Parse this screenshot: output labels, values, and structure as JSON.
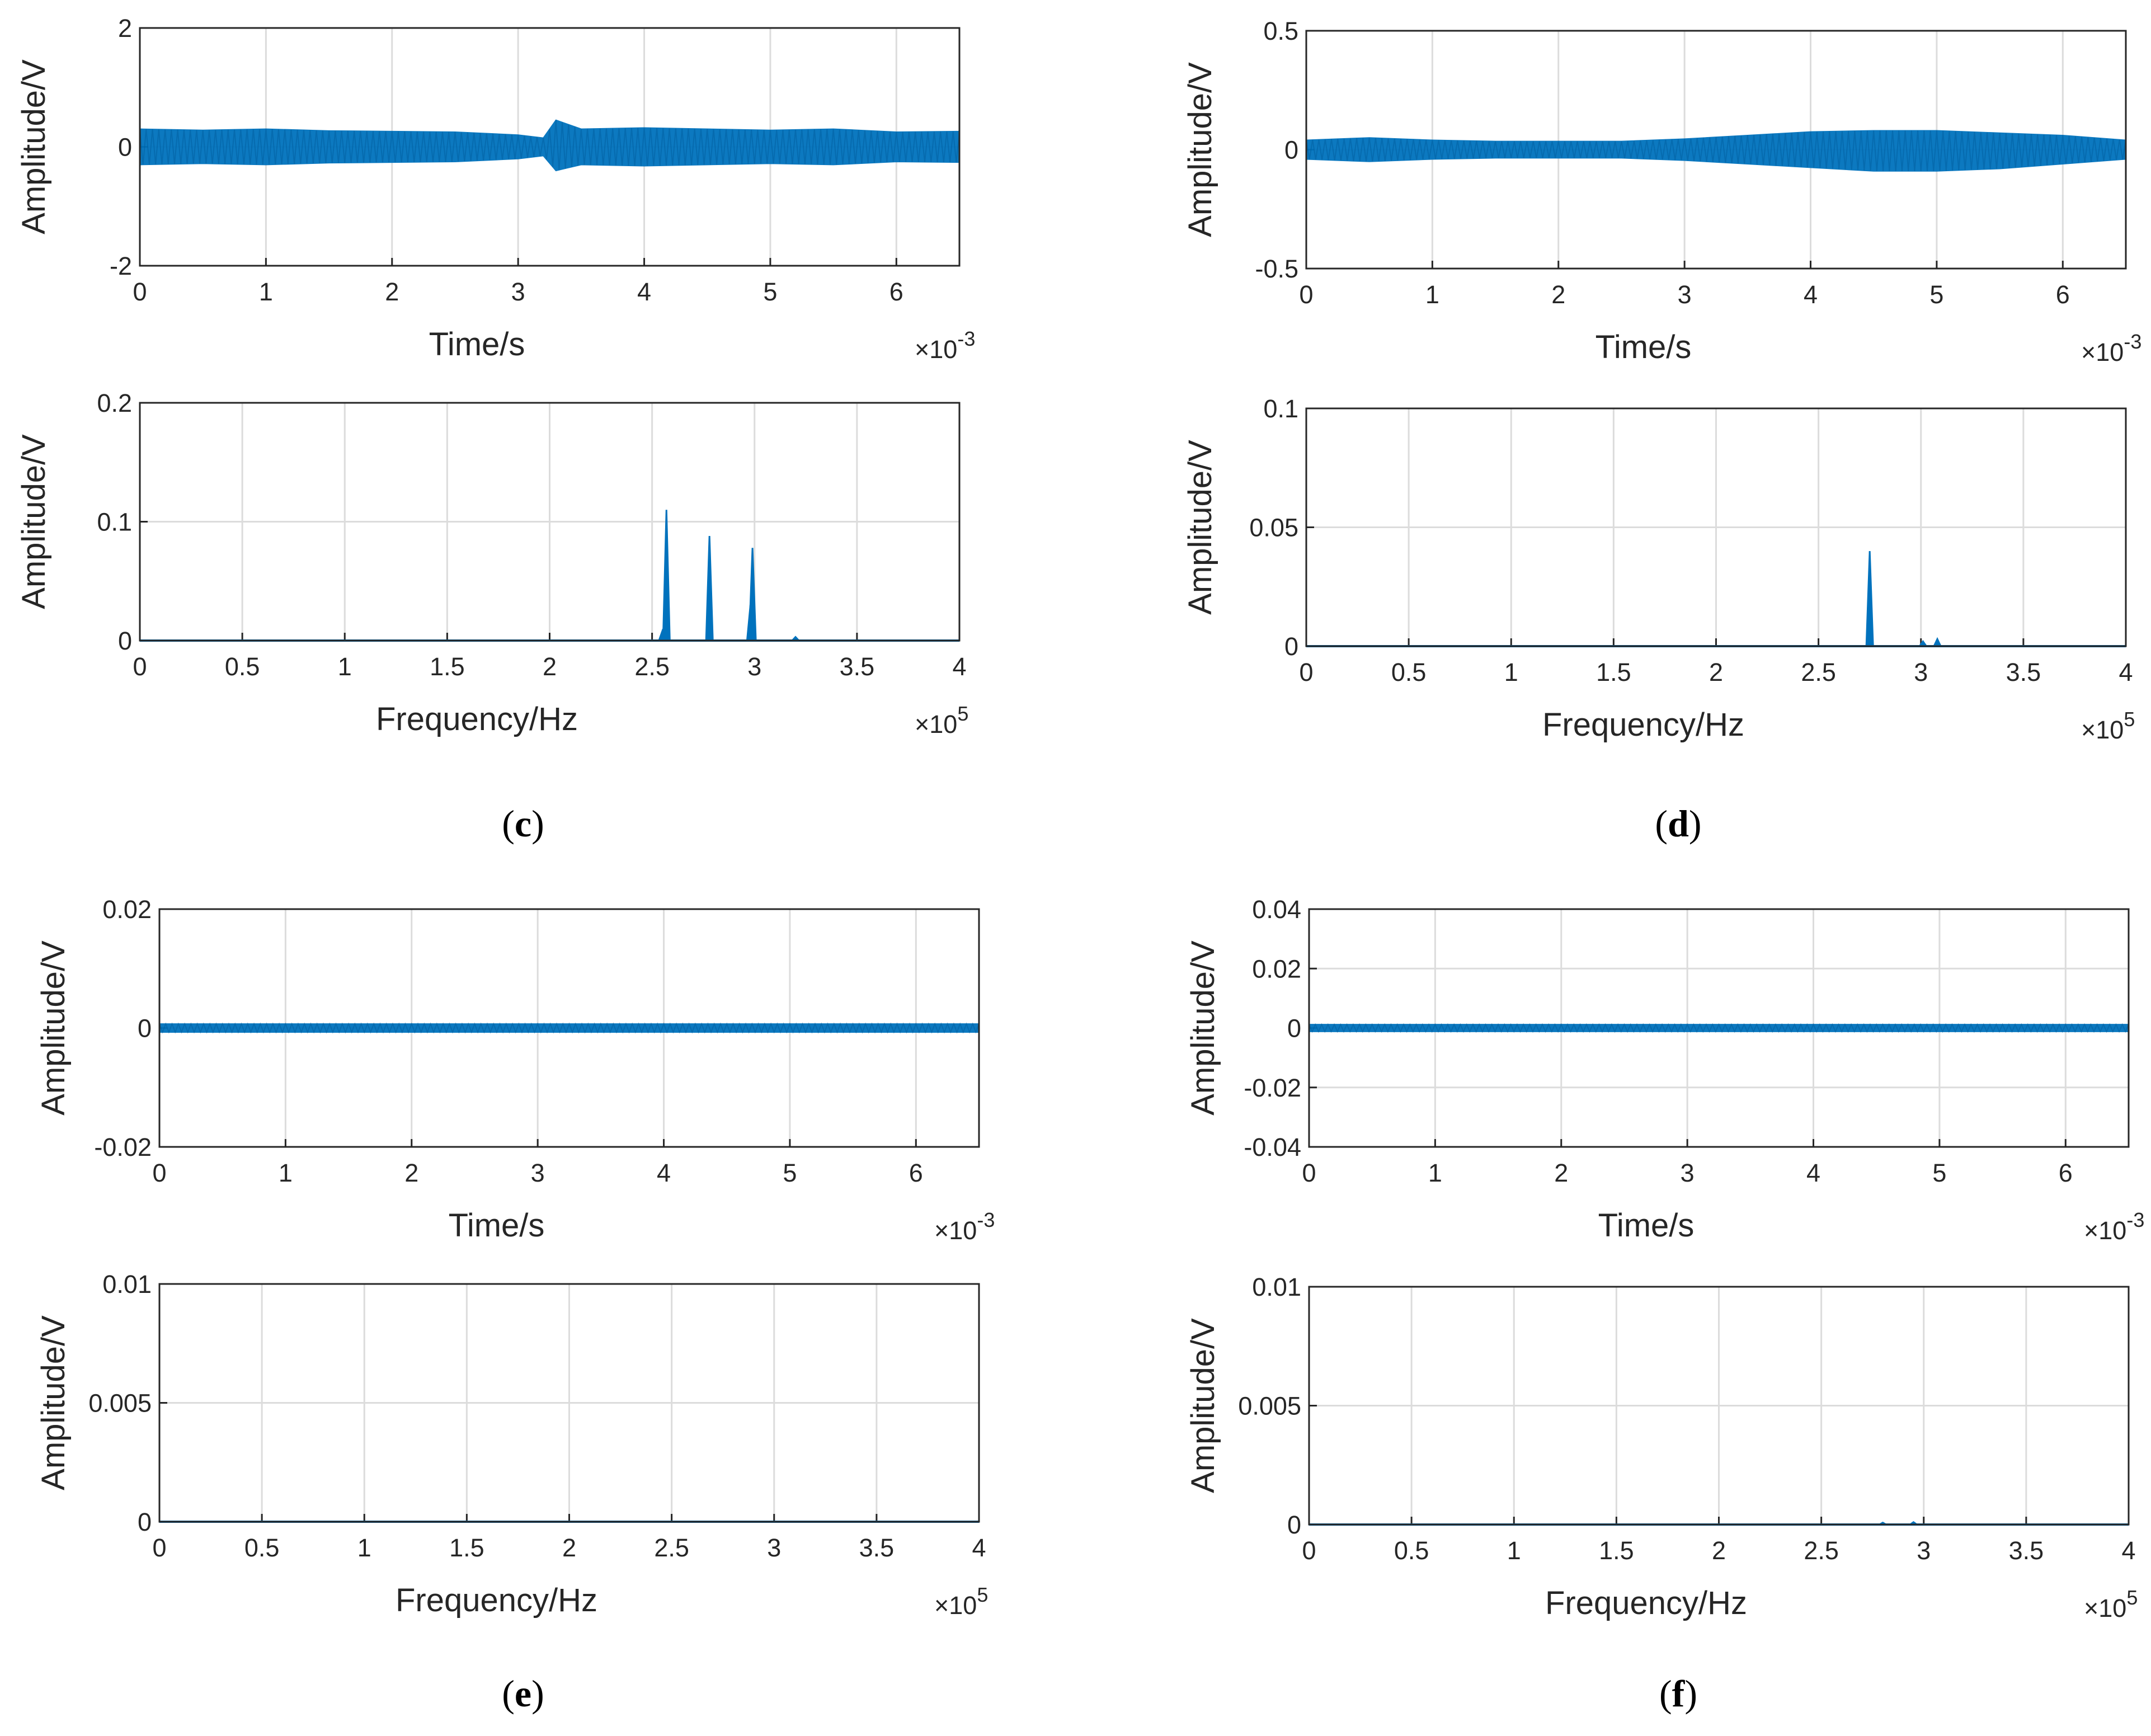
{
  "chart_data": [
    {
      "id": "c-time",
      "type": "line",
      "xlabel": "Time/s",
      "ylabel": "Amplitude/V",
      "xlim": [
        0,
        0.0065
      ],
      "ylim": [
        -2,
        2
      ],
      "xticks": [
        "0",
        "1",
        "2",
        "3",
        "4",
        "5",
        "6"
      ],
      "yticks": [
        "-2",
        "0",
        "2"
      ],
      "x_multiplier": "×10",
      "x_exponent": "-3",
      "signal": {
        "kind": "envelope",
        "x": [
          0,
          0.0005,
          0.001,
          0.0015,
          0.002,
          0.0025,
          0.003,
          0.0032,
          0.0033,
          0.0035,
          0.004,
          0.0045,
          0.005,
          0.0055,
          0.006,
          0.0065
        ],
        "upper": [
          0.3,
          0.28,
          0.3,
          0.27,
          0.26,
          0.25,
          0.2,
          0.15,
          0.45,
          0.3,
          0.32,
          0.3,
          0.28,
          0.3,
          0.25,
          0.26
        ],
        "lower": [
          -0.3,
          -0.28,
          -0.3,
          -0.27,
          -0.26,
          -0.25,
          -0.2,
          -0.15,
          -0.4,
          -0.3,
          -0.32,
          -0.3,
          -0.28,
          -0.3,
          -0.25,
          -0.26
        ]
      }
    },
    {
      "id": "c-freq",
      "type": "line",
      "xlabel": "Frequency/Hz",
      "ylabel": "Amplitude/V",
      "xlim": [
        0,
        400000
      ],
      "ylim": [
        0,
        0.2
      ],
      "xticks": [
        "0",
        "0.5",
        "1",
        "1.5",
        "2",
        "2.5",
        "3",
        "3.5",
        "4"
      ],
      "yticks": [
        "0",
        "0.1",
        "0.2"
      ],
      "x_multiplier": "×10",
      "x_exponent": "5",
      "signal": {
        "kind": "spectrum",
        "peaks": [
          {
            "f": 257000,
            "a": 0.11
          },
          {
            "f": 278000,
            "a": 0.088
          },
          {
            "f": 299000,
            "a": 0.078
          },
          {
            "f": 298000,
            "a": 0.03
          },
          {
            "f": 255000,
            "a": 0.008
          },
          {
            "f": 320000,
            "a": 0.003
          }
        ]
      }
    },
    {
      "id": "d-time",
      "type": "line",
      "xlabel": "Time/s",
      "ylabel": "Amplitude/V",
      "xlim": [
        0,
        0.0065
      ],
      "ylim": [
        -0.5,
        0.5
      ],
      "xticks": [
        "0",
        "1",
        "2",
        "3",
        "4",
        "5",
        "6"
      ],
      "yticks": [
        "-0.5",
        "0",
        "0.5"
      ],
      "x_multiplier": "×10",
      "x_exponent": "-3",
      "signal": {
        "kind": "envelope",
        "x": [
          0,
          0.0005,
          0.001,
          0.0015,
          0.002,
          0.0025,
          0.003,
          0.0035,
          0.004,
          0.0045,
          0.005,
          0.0055,
          0.006,
          0.0065
        ],
        "upper": [
          0.04,
          0.05,
          0.04,
          0.035,
          0.035,
          0.035,
          0.045,
          0.06,
          0.075,
          0.08,
          0.08,
          0.07,
          0.06,
          0.04
        ],
        "lower": [
          -0.04,
          -0.05,
          -0.04,
          -0.035,
          -0.035,
          -0.035,
          -0.045,
          -0.06,
          -0.075,
          -0.09,
          -0.09,
          -0.08,
          -0.06,
          -0.04
        ]
      }
    },
    {
      "id": "d-freq",
      "type": "line",
      "xlabel": "Frequency/Hz",
      "ylabel": "Amplitude/V",
      "xlim": [
        0,
        400000
      ],
      "ylim": [
        0,
        0.1
      ],
      "xticks": [
        "0",
        "0.5",
        "1",
        "1.5",
        "2",
        "2.5",
        "3",
        "3.5",
        "4"
      ],
      "yticks": [
        "0",
        "0.05",
        "0.1"
      ],
      "x_multiplier": "×10",
      "x_exponent": "5",
      "signal": {
        "kind": "spectrum",
        "peaks": [
          {
            "f": 275000,
            "a": 0.04
          },
          {
            "f": 301000,
            "a": 0.002
          },
          {
            "f": 308000,
            "a": 0.003
          }
        ]
      }
    },
    {
      "id": "e-time",
      "type": "line",
      "xlabel": "Time/s",
      "ylabel": "Amplitude/V",
      "xlim": [
        0,
        0.0065
      ],
      "ylim": [
        -0.02,
        0.02
      ],
      "xticks": [
        "0",
        "1",
        "2",
        "3",
        "4",
        "5",
        "6"
      ],
      "yticks": [
        "-0.02",
        "0",
        "0.02"
      ],
      "x_multiplier": "×10",
      "x_exponent": "-3",
      "signal": {
        "kind": "envelope",
        "x": [
          0,
          0.0065
        ],
        "upper": [
          0.0007,
          0.0007
        ],
        "lower": [
          -0.0007,
          -0.0007
        ]
      }
    },
    {
      "id": "e-freq",
      "type": "line",
      "xlabel": "Frequency/Hz",
      "ylabel": "Amplitude/V",
      "xlim": [
        0,
        400000
      ],
      "ylim": [
        0,
        0.01
      ],
      "xticks": [
        "0",
        "0.5",
        "1",
        "1.5",
        "2",
        "2.5",
        "3",
        "3.5",
        "4"
      ],
      "yticks": [
        "0",
        "0.005",
        "0.01"
      ],
      "x_multiplier": "×10",
      "x_exponent": "5",
      "signal": {
        "kind": "spectrum",
        "peaks": []
      }
    },
    {
      "id": "f-time",
      "type": "line",
      "xlabel": "Time/s",
      "ylabel": "Amplitude/V",
      "xlim": [
        0,
        0.0065
      ],
      "ylim": [
        -0.04,
        0.04
      ],
      "xticks": [
        "0",
        "1",
        "2",
        "3",
        "4",
        "5",
        "6"
      ],
      "yticks": [
        "-0.04",
        "-0.02",
        "0",
        "0.02",
        "0.04"
      ],
      "x_multiplier": "×10",
      "x_exponent": "-3",
      "signal": {
        "kind": "envelope",
        "x": [
          0,
          0.0065
        ],
        "upper": [
          0.0012,
          0.0012
        ],
        "lower": [
          -0.0012,
          -0.0012
        ]
      }
    },
    {
      "id": "f-freq",
      "type": "line",
      "xlabel": "Frequency/Hz",
      "ylabel": "Amplitude/V",
      "xlim": [
        0,
        400000
      ],
      "ylim": [
        0,
        0.01
      ],
      "xticks": [
        "0",
        "0.5",
        "1",
        "1.5",
        "2",
        "2.5",
        "3",
        "3.5",
        "4"
      ],
      "yticks": [
        "0",
        "0.005",
        "0.01"
      ],
      "x_multiplier": "×10",
      "x_exponent": "5",
      "signal": {
        "kind": "spectrum",
        "peaks": [
          {
            "f": 280000,
            "a": 8e-05
          },
          {
            "f": 295000,
            "a": 0.0001
          }
        ]
      }
    }
  ],
  "panels": {
    "c": {
      "open": "(",
      "letter": "c",
      "close": ")"
    },
    "d": {
      "open": "(",
      "letter": "d",
      "close": ")"
    },
    "e": {
      "open": "(",
      "letter": "e",
      "close": ")"
    },
    "f": {
      "open": "(",
      "letter": "f",
      "close": ")"
    }
  },
  "colors": {
    "trace": "#0072bd",
    "grid": "#dcdcdc",
    "axis": "#262626"
  }
}
